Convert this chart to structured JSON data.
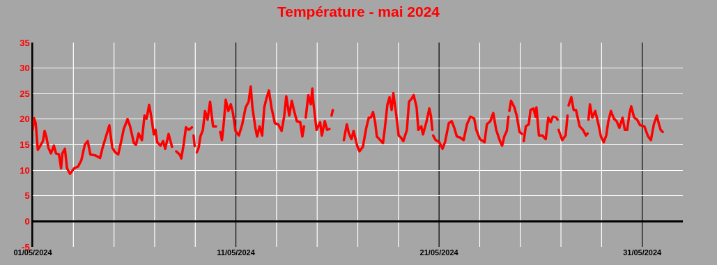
{
  "chart_data": {
    "type": "line",
    "title": "Température - mai 2024",
    "xlim": [
      "2024-05-01",
      "2024-06-02"
    ],
    "xticks": [
      {
        "value": "2024-05-01",
        "label": "01/05/2024"
      },
      {
        "value": "2024-05-03",
        "label": null
      },
      {
        "value": "2024-05-05",
        "label": null
      },
      {
        "value": "2024-05-07",
        "label": null
      },
      {
        "value": "2024-05-09",
        "label": null
      },
      {
        "value": "2024-05-11",
        "label": "11/05/2024"
      },
      {
        "value": "2024-05-13",
        "label": null
      },
      {
        "value": "2024-05-15",
        "label": null
      },
      {
        "value": "2024-05-17",
        "label": null
      },
      {
        "value": "2024-05-19",
        "label": null
      },
      {
        "value": "2024-05-21",
        "label": "21/05/2024"
      },
      {
        "value": "2024-05-23",
        "label": null
      },
      {
        "value": "2024-05-25",
        "label": null
      },
      {
        "value": "2024-05-27",
        "label": null
      },
      {
        "value": "2024-05-29",
        "label": null
      },
      {
        "value": "2024-05-31",
        "label": "31/05/2024"
      }
    ],
    "ylim": [
      -5,
      35
    ],
    "yticks": [
      -5,
      0,
      5,
      10,
      15,
      20,
      25,
      30,
      35
    ],
    "grid": true,
    "marker": "none",
    "line_style": "solid",
    "ref_lines": [
      {
        "axis": "y",
        "value": 0,
        "color": "#000000"
      }
    ],
    "series": [
      {
        "color": "#ff0000",
        "x": [
          "2024-05-01T00:00",
          "2024-05-01T01:30",
          "2024-05-01T03:30",
          "2024-05-01T06:00",
          "2024-05-01T09:00",
          "2024-05-01T12:00",
          "2024-05-01T14:00",
          "2024-05-01T16:00",
          "2024-05-01T18:30",
          "2024-05-01T21:30",
          "2024-05-02T01:00",
          "2024-05-02T03:30",
          "2024-05-02T07:00",
          "2024-05-02T09:30",
          "2024-05-02T11:00",
          "2024-05-02T14:00",
          "2024-05-02T16:30",
          "2024-05-02T20:00",
          "2024-05-03T01:00",
          "2024-05-03T05:30",
          "2024-05-03T09:30",
          "2024-05-03T13:30",
          "2024-05-03T17:00",
          "2024-05-03T20:00",
          "2024-05-04T02:00",
          "2024-05-04T07:30",
          "2024-05-04T10:30",
          "2024-05-04T14:30",
          "2024-05-04T18:30",
          "2024-05-04T22:00",
          "2024-05-05T01:30",
          "2024-05-05T05:00",
          "2024-05-05T08:00",
          "2024-05-05T11:30",
          "2024-05-05T16:00",
          "2024-05-05T19:00",
          "2024-05-05T23:30",
          "2024-05-06T02:00",
          "2024-05-06T05:00",
          "2024-05-06T09:00",
          "2024-05-06T12:00",
          "2024-05-06T14:30",
          "2024-05-06T17:30",
          "2024-05-06T20:00",
          "2024-05-06T23:00",
          "2024-05-07T01:00",
          "2024-05-07T03:00",
          "2024-05-07T07:00",
          "2024-05-07T10:00",
          "2024-05-07T12:30",
          "2024-05-07T16:30",
          "2024-05-07T20:30",
          "2024-05-07T22:00",
          "2024-05-08T01:30",
          "2024-05-08T06:00",
          "2024-05-08T07:30",
          "2024-05-08T10:30",
          "2024-05-08T13:00",
          "2024-05-08T16:30",
          "2024-05-08T20:00",
          "2024-05-08T21:00",
          "2024-05-08T22:00",
          "2024-05-08T23:15",
          "2024-05-09T00:30",
          "2024-05-09T01:45",
          "2024-05-09T04:00",
          "2024-05-09T06:00",
          "2024-05-09T09:00",
          "2024-05-09T11:30",
          "2024-05-09T14:30",
          "2024-05-09T17:30",
          "2024-05-09T21:00",
          "2024-05-10T00:30",
          "2024-05-10T03:00",
          "2024-05-10T05:30",
          "2024-05-10T07:30",
          "2024-05-10T09:30",
          "2024-05-10T12:00",
          "2024-05-10T15:00",
          "2024-05-10T18:00",
          "2024-05-10T20:30",
          "2024-05-10T23:30",
          "2024-05-11T03:30",
          "2024-05-11T07:30",
          "2024-05-11T11:30",
          "2024-05-11T15:00",
          "2024-05-11T17:30",
          "2024-05-11T19:30",
          "2024-05-11T23:00",
          "2024-05-12T01:00",
          "2024-05-12T04:00",
          "2024-05-12T07:00",
          "2024-05-12T09:30",
          "2024-05-12T12:00",
          "2024-05-12T15:00",
          "2024-05-12T18:00",
          "2024-05-12T22:00",
          "2024-05-13T02:00",
          "2024-05-13T06:00",
          "2024-05-13T09:00",
          "2024-05-13T11:30",
          "2024-05-13T15:00",
          "2024-05-13T18:00",
          "2024-05-13T20:30",
          "2024-05-14T00:00",
          "2024-05-14T04:00",
          "2024-05-14T06:30",
          "2024-05-14T08:30",
          "2024-05-14T09:30",
          "2024-05-14T10:30",
          "2024-05-14T13:30",
          "2024-05-14T16:30",
          "2024-05-14T18:15",
          "2024-05-14T19:00",
          "2024-05-14T23:15",
          "2024-05-15T03:30",
          "2024-05-15T05:30",
          "2024-05-15T09:00",
          "2024-05-15T11:45",
          "2024-05-15T14:30",
          "2024-05-15T15:30",
          "2024-05-15T17:00",
          "2024-05-15T18:30",
          "2024-05-16T00:00",
          "2024-05-16T07:30",
          "2024-05-16T11:00",
          "2024-05-16T13:30",
          "2024-05-16T16:30",
          "2024-05-16T19:00",
          "2024-05-16T23:15",
          "2024-05-17T02:00",
          "2024-05-17T06:00",
          "2024-05-17T10:00",
          "2024-05-17T13:00",
          "2024-05-17T15:30",
          "2024-05-17T18:00",
          "2024-05-17T20:30",
          "2024-05-17T22:30",
          "2024-05-18T02:30",
          "2024-05-18T05:45",
          "2024-05-18T08:00",
          "2024-05-18T11:00",
          "2024-05-18T13:30",
          "2024-05-18T16:00",
          "2024-05-18T18:00",
          "2024-05-18T21:00",
          "2024-05-19T00:15",
          "2024-05-19T03:00",
          "2024-05-19T05:45",
          "2024-05-19T10:00",
          "2024-05-19T12:30",
          "2024-05-19T15:30",
          "2024-05-19T18:00",
          "2024-05-19T21:30",
          "2024-05-19T23:30",
          "2024-05-20T03:00",
          "2024-05-20T05:00",
          "2024-05-20T09:00",
          "2024-05-20T12:30",
          "2024-05-20T14:30",
          "2024-05-20T16:00",
          "2024-05-20T16:30",
          "2024-05-20T17:00",
          "2024-05-20T20:00",
          "2024-05-21T00:15",
          "2024-05-21T04:00",
          "2024-05-21T07:00",
          "2024-05-21T11:30",
          "2024-05-21T15:00",
          "2024-05-21T18:00",
          "2024-05-21T21:00",
          "2024-05-22T01:00",
          "2024-05-22T05:00",
          "2024-05-22T09:00",
          "2024-05-22T13:00",
          "2024-05-22T17:30",
          "2024-05-22T20:00",
          "2024-05-23T00:15",
          "2024-05-23T05:45",
          "2024-05-23T08:30",
          "2024-05-23T12:30",
          "2024-05-23T16:00",
          "2024-05-23T19:30",
          "2024-05-23T23:30",
          "2024-05-24T02:30",
          "2024-05-24T05:00",
          "2024-05-24T08:00",
          "2024-05-24T10:00",
          "2024-05-24T10:30",
          "2024-05-24T11:00",
          "2024-05-24T13:00",
          "2024-05-24T17:00",
          "2024-05-24T20:00",
          "2024-05-24T23:00",
          "2024-05-25T02:00",
          "2024-05-25T03:00",
          "2024-05-25T04:00",
          "2024-05-25T06:30",
          "2024-05-25T10:00",
          "2024-05-25T12:00",
          "2024-05-25T15:30",
          "2024-05-25T18:00",
          "2024-05-25T19:00",
          "2024-05-25T22:00",
          "2024-05-26T02:00",
          "2024-05-26T06:00",
          "2024-05-26T09:00",
          "2024-05-26T11:45",
          "2024-05-26T14:30",
          "2024-05-26T18:30",
          "2024-05-26T20:00",
          "2024-05-26T20:30",
          "2024-05-26T21:15",
          "2024-05-27T01:30",
          "2024-05-27T05:30",
          "2024-05-27T07:45",
          "2024-05-27T08:15",
          "2024-05-27T09:00",
          "2024-05-27T12:15",
          "2024-05-27T15:00",
          "2024-05-27T17:45",
          "2024-05-27T22:00",
          "2024-05-28T02:00",
          "2024-05-28T05:30",
          "2024-05-28T07:30",
          "2024-05-28T08:00",
          "2024-05-28T08:30",
          "2024-05-28T10:15",
          "2024-05-28T13:00",
          "2024-05-28T16:30",
          "2024-05-28T20:00",
          "2024-05-28T23:15",
          "2024-05-29T02:30",
          "2024-05-29T05:30",
          "2024-05-29T08:00",
          "2024-05-29T11:00",
          "2024-05-29T14:30",
          "2024-05-29T17:45",
          "2024-05-29T21:00",
          "2024-05-30T00:45",
          "2024-05-30T03:30",
          "2024-05-30T06:15",
          "2024-05-30T09:00",
          "2024-05-30T11:00",
          "2024-05-30T14:30",
          "2024-05-30T18:00",
          "2024-05-30T21:30",
          "2024-05-31T02:30",
          "2024-05-31T07:00",
          "2024-05-31T10:15",
          "2024-05-31T13:45",
          "2024-05-31T17:15",
          "2024-05-31T19:45",
          "2024-05-31T21:45",
          "2024-06-01T00:15"
        ],
        "values": [
          17.9,
          20.2,
          19.2,
          14.0,
          14.8,
          15.7,
          17.7,
          16.6,
          14.4,
          13.3,
          14.8,
          13.3,
          13.1,
          10.4,
          13.3,
          14.2,
          10.4,
          9.3,
          10.4,
          10.7,
          12.0,
          15.0,
          15.7,
          13.1,
          12.9,
          12.4,
          14.4,
          16.6,
          18.8,
          14.4,
          13.5,
          13.1,
          15.3,
          18.1,
          20.0,
          18.6,
          15.3,
          15.0,
          17.2,
          15.9,
          20.7,
          20.1,
          22.8,
          20.5,
          17.0,
          17.9,
          15.5,
          14.8,
          15.7,
          14.2,
          17.1,
          14.6,
          null,
          13.7,
          13.0,
          12.3,
          15.3,
          18.4,
          17.9,
          18.4,
          null,
          16.8,
          14.7,
          null,
          13.5,
          14.4,
          16.6,
          17.9,
          21.6,
          19.9,
          23.4,
          18.6,
          18.6,
          null,
          17.5,
          15.9,
          19.0,
          23.8,
          21.6,
          22.9,
          21.2,
          17.7,
          16.8,
          19.0,
          22.3,
          23.4,
          26.4,
          22.3,
          18.3,
          16.6,
          18.6,
          16.8,
          22.3,
          24.0,
          25.6,
          22.3,
          19.2,
          19.0,
          17.7,
          20.5,
          24.5,
          20.7,
          23.6,
          21.8,
          19.6,
          19.4,
          16.6,
          18.6,
          null,
          20.3,
          24.7,
          22.9,
          26.0,
          24.0,
          17.9,
          19.4,
          16.8,
          19.6,
          17.9,
          18.1,
          null,
          20.7,
          21.8,
          null,
          15.9,
          19.0,
          17.2,
          16.1,
          17.7,
          14.8,
          13.7,
          14.6,
          18.3,
          20.3,
          20.3,
          21.4,
          19.4,
          16.6,
          15.9,
          15.3,
          18.3,
          22.9,
          24.3,
          21.8,
          25.1,
          21.4,
          16.8,
          16.4,
          15.7,
          17.9,
          23.4,
          24.0,
          24.7,
          22.3,
          17.9,
          18.6,
          17.0,
          19.4,
          22.1,
          20.5,
          17.9,
          null,
          16.8,
          15.9,
          15.5,
          14.2,
          15.5,
          19.2,
          19.6,
          18.3,
          16.6,
          16.4,
          15.9,
          19.0,
          20.5,
          20.1,
          17.9,
          16.1,
          15.5,
          19.0,
          19.6,
          21.2,
          17.9,
          15.9,
          14.8,
          16.6,
          17.7,
          20.5,
          null,
          21.6,
          23.6,
          22.3,
          20.5,
          17.5,
          17.1,
          null,
          15.7,
          18.6,
          19.0,
          21.8,
          22.1,
          20.5,
          22.3,
          16.8,
          16.8,
          16.1,
          20.3,
          19.4,
          20.5,
          20.3,
          19.9,
          null,
          17.9,
          15.9,
          16.8,
          20.7,
          null,
          22.7,
          24.3,
          21.8,
          21.8,
          18.6,
          17.9,
          16.8,
          17.2,
          null,
          19.9,
          22.9,
          20.3,
          21.6,
          19.2,
          16.6,
          15.5,
          16.8,
          19.6,
          21.6,
          20.1,
          19.6,
          18.3,
          20.3,
          17.9,
          17.9,
          21.2,
          22.5,
          20.3,
          19.9,
          18.8,
          18.6,
          16.6,
          15.9,
          19.0,
          20.7,
          19.0,
          17.9,
          17.5
        ]
      }
    ]
  }
}
